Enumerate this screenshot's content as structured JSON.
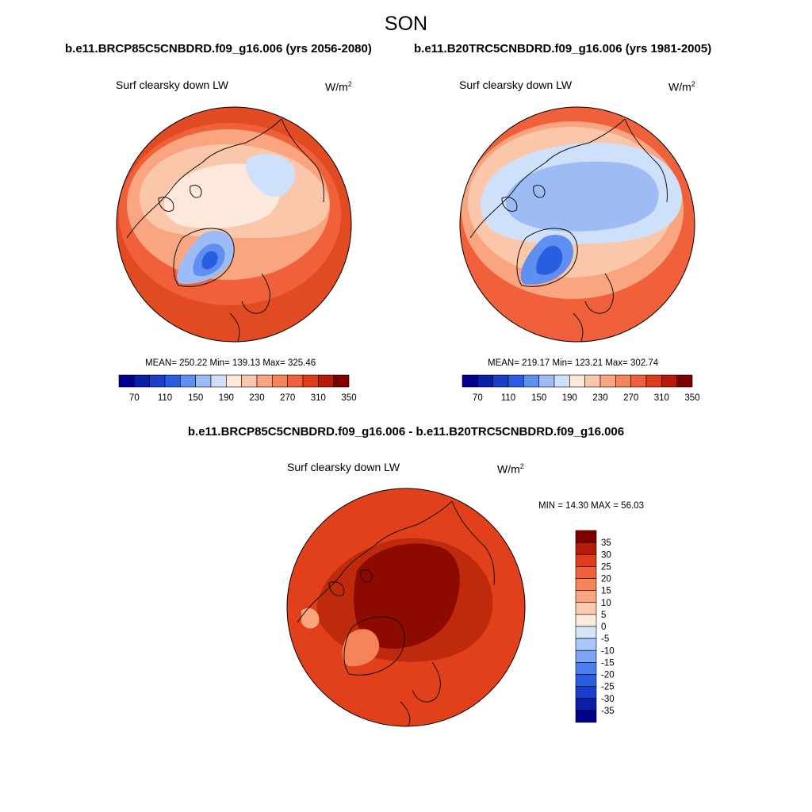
{
  "header": {
    "season": "SON",
    "case_left": "b.e11.BRCP85C5CNBDRD.f09_g16.006 (yrs 2056-2080)",
    "case_right": "b.e11.B20TRC5CNBDRD.f09_g16.006 (yrs 1981-2005)",
    "diff_title": "b.e11.BRCP85C5CNBDRD.f09_g16.006 - b.e11.B20TRC5CNBDRD.f09_g16.006"
  },
  "panels": {
    "left": {
      "variable": "Surf clearsky down LW",
      "units_base": "W/m",
      "units_exp": "2",
      "stats": "MEAN= 250.22  Min= 139.13  Max= 325.46"
    },
    "right": {
      "variable": "Surf clearsky down LW",
      "units_base": "W/m",
      "units_exp": "2",
      "stats": "MEAN= 219.17  Min= 123.21  Max= 302.74"
    },
    "diff": {
      "variable": "Surf clearsky down LW",
      "units_base": "W/m",
      "units_exp": "2",
      "stats": "MIN =  14.30 MAX =  56.03"
    }
  },
  "colorbar_abs": {
    "colors": [
      "#00008c",
      "#0a1fa8",
      "#1b3fc8",
      "#2a5ee0",
      "#5f8ff0",
      "#9dbcf5",
      "#cfe1fa",
      "#fde8dc",
      "#fbc7ab",
      "#f9a57f",
      "#f6845a",
      "#f0603a",
      "#de3c1c",
      "#b51a0a",
      "#800000"
    ],
    "tick_labels": [
      "70",
      "110",
      "150",
      "190",
      "230",
      "270",
      "310",
      "350"
    ]
  },
  "colorbar_diff": {
    "colors": [
      "#00008c",
      "#0a1fa8",
      "#1b3fc8",
      "#2a5ee0",
      "#4d7fec",
      "#7da4f2",
      "#a9c6f7",
      "#d4e4fb",
      "#fdebe0",
      "#fbcbb0",
      "#f9a57f",
      "#f6845a",
      "#f0603a",
      "#de3c1c",
      "#b51a0a",
      "#800000"
    ],
    "tick_labels": [
      "35",
      "30",
      "25",
      "20",
      "15",
      "10",
      "5",
      "0",
      "-5",
      "-10",
      "-15",
      "-20",
      "-25",
      "-30",
      "-35"
    ]
  },
  "map_colors": {
    "warm_outer": "#e24a22",
    "warm_mid": "#f0603a",
    "warm_light": "#f9a57f",
    "pale": "#fbc7ab",
    "paler": "#fde8dc",
    "blue_pale": "#cfe1fa",
    "blue_light": "#9dbcf5",
    "blue_mid": "#5f8ff0",
    "blue_deep": "#2a5ee0",
    "diff_outer": "#e2401a",
    "diff_mid": "#c02a0c",
    "diff_dark": "#8c0a00",
    "diff_light": "#f6845a",
    "diff_pale": "#f9a57f",
    "coast": "#111111"
  }
}
